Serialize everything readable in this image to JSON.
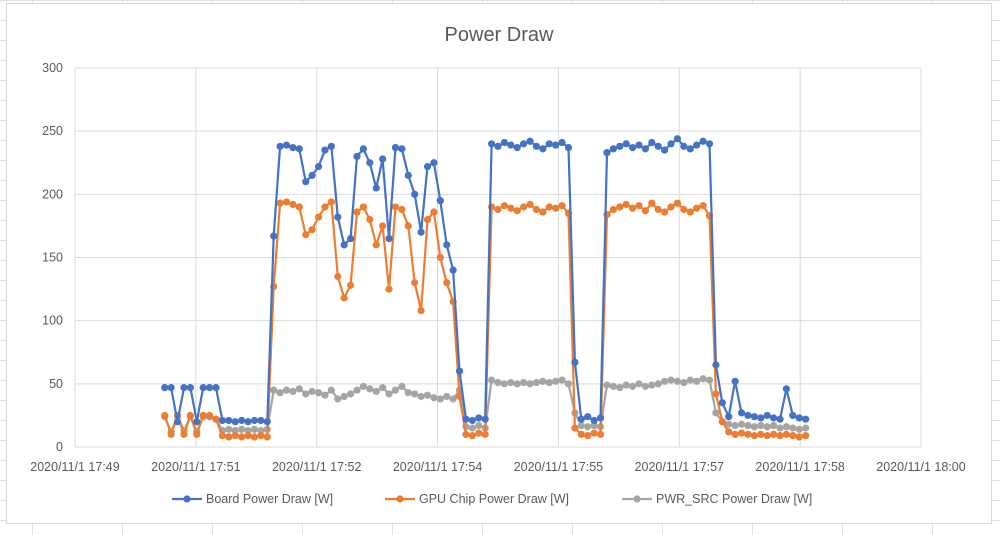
{
  "chart_data": {
    "type": "line",
    "title": "Power Draw",
    "xlabel": "",
    "ylabel": "",
    "ylim": [
      0,
      300
    ],
    "yticks": [
      0,
      50,
      100,
      150,
      200,
      250,
      300
    ],
    "xlim": [
      "17:49:00",
      "18:00:00"
    ],
    "xtick_labels": [
      "2020/11/1 17:49",
      "2020/11/1 17:51",
      "2020/11/1 17:52",
      "2020/11/1 17:54",
      "2020/11/1 17:55",
      "2020/11/1 17:57",
      "2020/11/1 17:58",
      "2020/11/1 18:00"
    ],
    "grid": true,
    "legend_position": "bottom",
    "markers": true,
    "x": [
      "17:50:10",
      "17:50:15",
      "17:50:20",
      "17:50:25",
      "17:50:30",
      "17:50:35",
      "17:50:40",
      "17:50:45",
      "17:50:50",
      "17:50:55",
      "17:51:00",
      "17:51:05",
      "17:51:10",
      "17:51:15",
      "17:51:20",
      "17:51:25",
      "17:51:30",
      "17:51:35",
      "17:51:40",
      "17:51:45",
      "17:51:50",
      "17:51:55",
      "17:52:00",
      "17:52:05",
      "17:52:10",
      "17:52:15",
      "17:52:20",
      "17:52:25",
      "17:52:30",
      "17:52:35",
      "17:52:40",
      "17:52:45",
      "17:52:50",
      "17:52:55",
      "17:53:00",
      "17:53:05",
      "17:53:10",
      "17:53:15",
      "17:53:20",
      "17:53:25",
      "17:53:30",
      "17:53:35",
      "17:53:40",
      "17:53:45",
      "17:53:50",
      "17:53:55",
      "17:54:00",
      "17:54:05",
      "17:54:10",
      "17:54:15",
      "17:54:20",
      "17:54:25",
      "17:54:30",
      "17:54:35",
      "17:54:40",
      "17:54:45",
      "17:54:50",
      "17:54:55",
      "17:55:00",
      "17:55:05",
      "17:55:10",
      "17:55:15",
      "17:55:20",
      "17:55:25",
      "17:55:30",
      "17:55:35",
      "17:55:40",
      "17:55:45",
      "17:55:50",
      "17:55:55",
      "17:56:00",
      "17:56:05",
      "17:56:10",
      "17:56:15",
      "17:56:20",
      "17:56:25",
      "17:56:30",
      "17:56:35",
      "17:56:40",
      "17:56:45",
      "17:56:50",
      "17:56:55",
      "17:57:00",
      "17:57:05",
      "17:57:10",
      "17:57:15",
      "17:57:20",
      "17:57:25",
      "17:57:30",
      "17:57:35",
      "17:57:40",
      "17:57:45",
      "17:57:50",
      "17:57:55",
      "17:58:00",
      "17:58:05",
      "17:58:10",
      "17:58:15",
      "17:58:20",
      "17:58:25",
      "17:58:30"
    ],
    "series": [
      {
        "name": "Board Power Draw [W]",
        "color": "#4472c4",
        "values": [
          47,
          47,
          20,
          47,
          47,
          20,
          47,
          47,
          47,
          21,
          21,
          20,
          21,
          20,
          21,
          21,
          20,
          167,
          238,
          239,
          237,
          236,
          210,
          215,
          222,
          235,
          238,
          182,
          160,
          165,
          230,
          236,
          225,
          205,
          228,
          165,
          237,
          236,
          215,
          200,
          170,
          222,
          225,
          195,
          160,
          140,
          60,
          22,
          21,
          23,
          22,
          240,
          238,
          241,
          239,
          237,
          240,
          242,
          238,
          236,
          240,
          239,
          241,
          237,
          67,
          22,
          24,
          21,
          23,
          233,
          236,
          238,
          240,
          237,
          239,
          236,
          241,
          238,
          235,
          240,
          244,
          238,
          236,
          239,
          242,
          240,
          65,
          35,
          24,
          52,
          27,
          25,
          24,
          23,
          25,
          23,
          22,
          46,
          25,
          23,
          22
        ]
      },
      {
        "name": "GPU Chip Power Draw [W]",
        "color": "#ed7d31",
        "values": [
          25,
          10,
          25,
          10,
          25,
          10,
          25,
          25,
          22,
          9,
          8,
          9,
          8,
          9,
          8,
          9,
          8,
          127,
          193,
          194,
          192,
          190,
          168,
          172,
          182,
          190,
          194,
          135,
          118,
          128,
          186,
          190,
          180,
          160,
          175,
          125,
          190,
          188,
          175,
          130,
          108,
          180,
          186,
          150,
          130,
          115,
          40,
          10,
          9,
          11,
          10,
          190,
          188,
          191,
          189,
          187,
          190,
          192,
          188,
          186,
          190,
          189,
          191,
          185,
          15,
          10,
          9,
          11,
          10,
          184,
          188,
          190,
          192,
          189,
          191,
          187,
          193,
          188,
          186,
          190,
          193,
          188,
          186,
          189,
          191,
          183,
          42,
          20,
          12,
          10,
          11,
          10,
          9,
          10,
          9,
          10,
          9,
          10,
          9,
          8,
          9
        ]
      },
      {
        "name": "PWR_SRC Power Draw [W]",
        "color": "#a5a5a5",
        "values": [
          24,
          12,
          24,
          13,
          24,
          12,
          24,
          24,
          22,
          13,
          14,
          13,
          14,
          13,
          14,
          13,
          14,
          45,
          43,
          45,
          44,
          46,
          42,
          44,
          43,
          41,
          45,
          38,
          40,
          42,
          45,
          48,
          46,
          44,
          47,
          42,
          45,
          48,
          43,
          42,
          40,
          41,
          39,
          38,
          40,
          38,
          45,
          16,
          15,
          17,
          15,
          53,
          51,
          50,
          51,
          50,
          51,
          50,
          51,
          52,
          51,
          52,
          53,
          50,
          27,
          17,
          16,
          17,
          16,
          49,
          48,
          47,
          49,
          48,
          50,
          48,
          49,
          50,
          52,
          53,
          52,
          51,
          53,
          52,
          54,
          53,
          27,
          20,
          18,
          17,
          18,
          17,
          16,
          17,
          16,
          17,
          15,
          16,
          15,
          14,
          15
        ]
      }
    ]
  }
}
